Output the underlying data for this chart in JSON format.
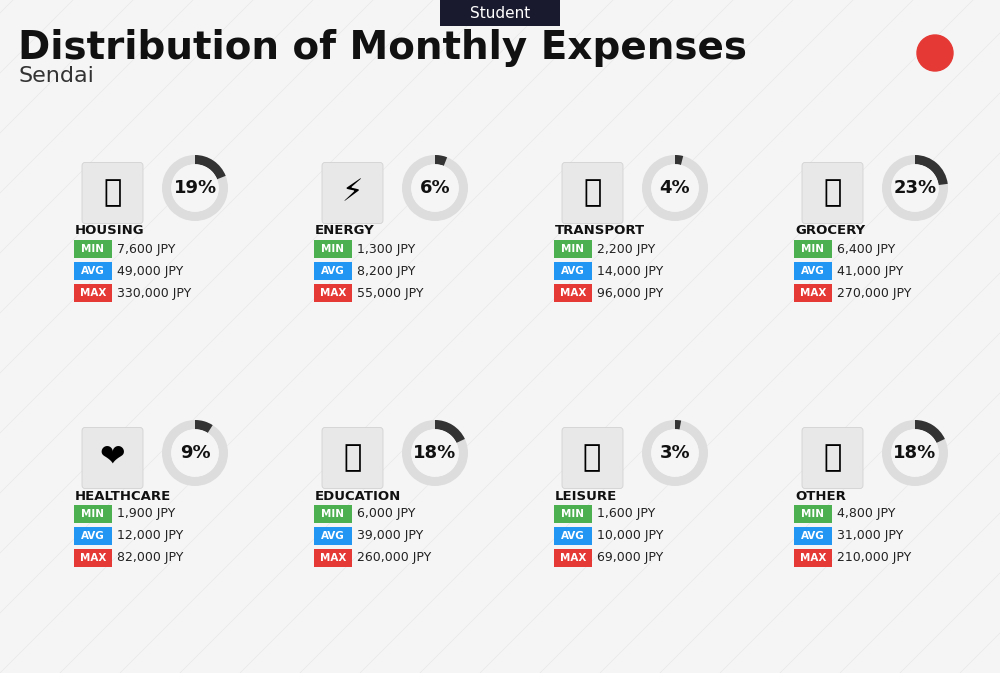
{
  "title": "Distribution of Monthly Expenses",
  "subtitle": "Sendai",
  "header_tag": "Student",
  "bg_color": "#f5f5f5",
  "header_tag_bg": "#1a1a2e",
  "header_tag_color": "#ffffff",
  "red_dot_color": "#e53935",
  "categories": [
    {
      "name": "HOUSING",
      "pct": 19,
      "min": "7,600 JPY",
      "avg": "49,000 JPY",
      "max": "330,000 JPY",
      "row": 0,
      "col": 0,
      "icon_emoji": "🏫"
    },
    {
      "name": "ENERGY",
      "pct": 6,
      "min": "1,300 JPY",
      "avg": "8,200 JPY",
      "max": "55,000 JPY",
      "row": 0,
      "col": 1,
      "icon_emoji": "⚡"
    },
    {
      "name": "TRANSPORT",
      "pct": 4,
      "min": "2,200 JPY",
      "avg": "14,000 JPY",
      "max": "96,000 JPY",
      "row": 0,
      "col": 2,
      "icon_emoji": "🚌"
    },
    {
      "name": "GROCERY",
      "pct": 23,
      "min": "6,400 JPY",
      "avg": "41,000 JPY",
      "max": "270,000 JPY",
      "row": 0,
      "col": 3,
      "icon_emoji": "🛒"
    },
    {
      "name": "HEALTHCARE",
      "pct": 9,
      "min": "1,900 JPY",
      "avg": "12,000 JPY",
      "max": "82,000 JPY",
      "row": 1,
      "col": 0,
      "icon_emoji": "❤️"
    },
    {
      "name": "EDUCATION",
      "pct": 18,
      "min": "6,000 JPY",
      "avg": "39,000 JPY",
      "max": "260,000 JPY",
      "row": 1,
      "col": 1,
      "icon_emoji": "🎓"
    },
    {
      "name": "LEISURE",
      "pct": 3,
      "min": "1,600 JPY",
      "avg": "10,000 JPY",
      "max": "69,000 JPY",
      "row": 1,
      "col": 2,
      "icon_emoji": "🛍️"
    },
    {
      "name": "OTHER",
      "pct": 18,
      "min": "4,800 JPY",
      "avg": "31,000 JPY",
      "max": "210,000 JPY",
      "row": 1,
      "col": 3,
      "icon_emoji": "💰"
    }
  ],
  "min_color": "#4caf50",
  "avg_color": "#2196f3",
  "max_color": "#e53935",
  "label_text_color": "#ffffff",
  "value_text_color": "#222222",
  "cat_name_color": "#111111",
  "donut_bg_color": "#dddddd",
  "donut_fill_color": "#333333",
  "donut_text_color": "#111111"
}
